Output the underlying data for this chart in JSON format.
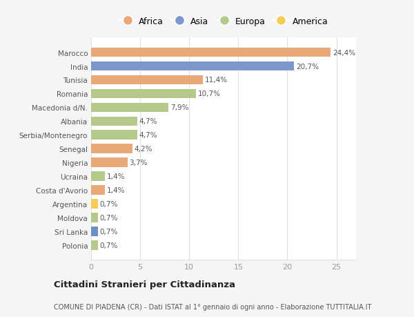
{
  "categories": [
    "Polonia",
    "Sri Lanka",
    "Moldova",
    "Argentina",
    "Costa d'Avorio",
    "Ucraina",
    "Nigeria",
    "Senegal",
    "Serbia/Montenegro",
    "Albania",
    "Macedonia d/N.",
    "Romania",
    "Tunisia",
    "India",
    "Marocco"
  ],
  "values": [
    0.7,
    0.7,
    0.7,
    0.7,
    1.4,
    1.4,
    3.7,
    4.2,
    4.7,
    4.7,
    7.9,
    10.7,
    11.4,
    20.7,
    24.4
  ],
  "labels": [
    "0,7%",
    "0,7%",
    "0,7%",
    "0,7%",
    "1,4%",
    "1,4%",
    "3,7%",
    "4,2%",
    "4,7%",
    "4,7%",
    "7,9%",
    "10,7%",
    "11,4%",
    "20,7%",
    "24,4%"
  ],
  "colors": [
    "#b5c98a",
    "#6b8fc8",
    "#b5c98a",
    "#f5cc55",
    "#e8a878",
    "#b5c98a",
    "#e8a878",
    "#e8a878",
    "#b5c98a",
    "#b5c98a",
    "#b5c98a",
    "#b5c98a",
    "#e8a878",
    "#7b97cc",
    "#e8a878"
  ],
  "legend_labels": [
    "Africa",
    "Asia",
    "Europa",
    "America"
  ],
  "legend_colors": [
    "#e8a878",
    "#7b97cc",
    "#b5c98a",
    "#f5cc55"
  ],
  "title": "Cittadini Stranieri per Cittadinanza",
  "subtitle": "COMUNE DI PIADENA (CR) - Dati ISTAT al 1° gennaio di ogni anno - Elaborazione TUTTITALIA.IT",
  "xlim": [
    0,
    27
  ],
  "xticks": [
    0,
    5,
    10,
    15,
    20,
    25
  ],
  "bg_color": "#f5f5f5",
  "plot_bg_color": "#ffffff",
  "grid_color": "#e0e0e0",
  "label_color": "#555555",
  "tick_color": "#999999"
}
